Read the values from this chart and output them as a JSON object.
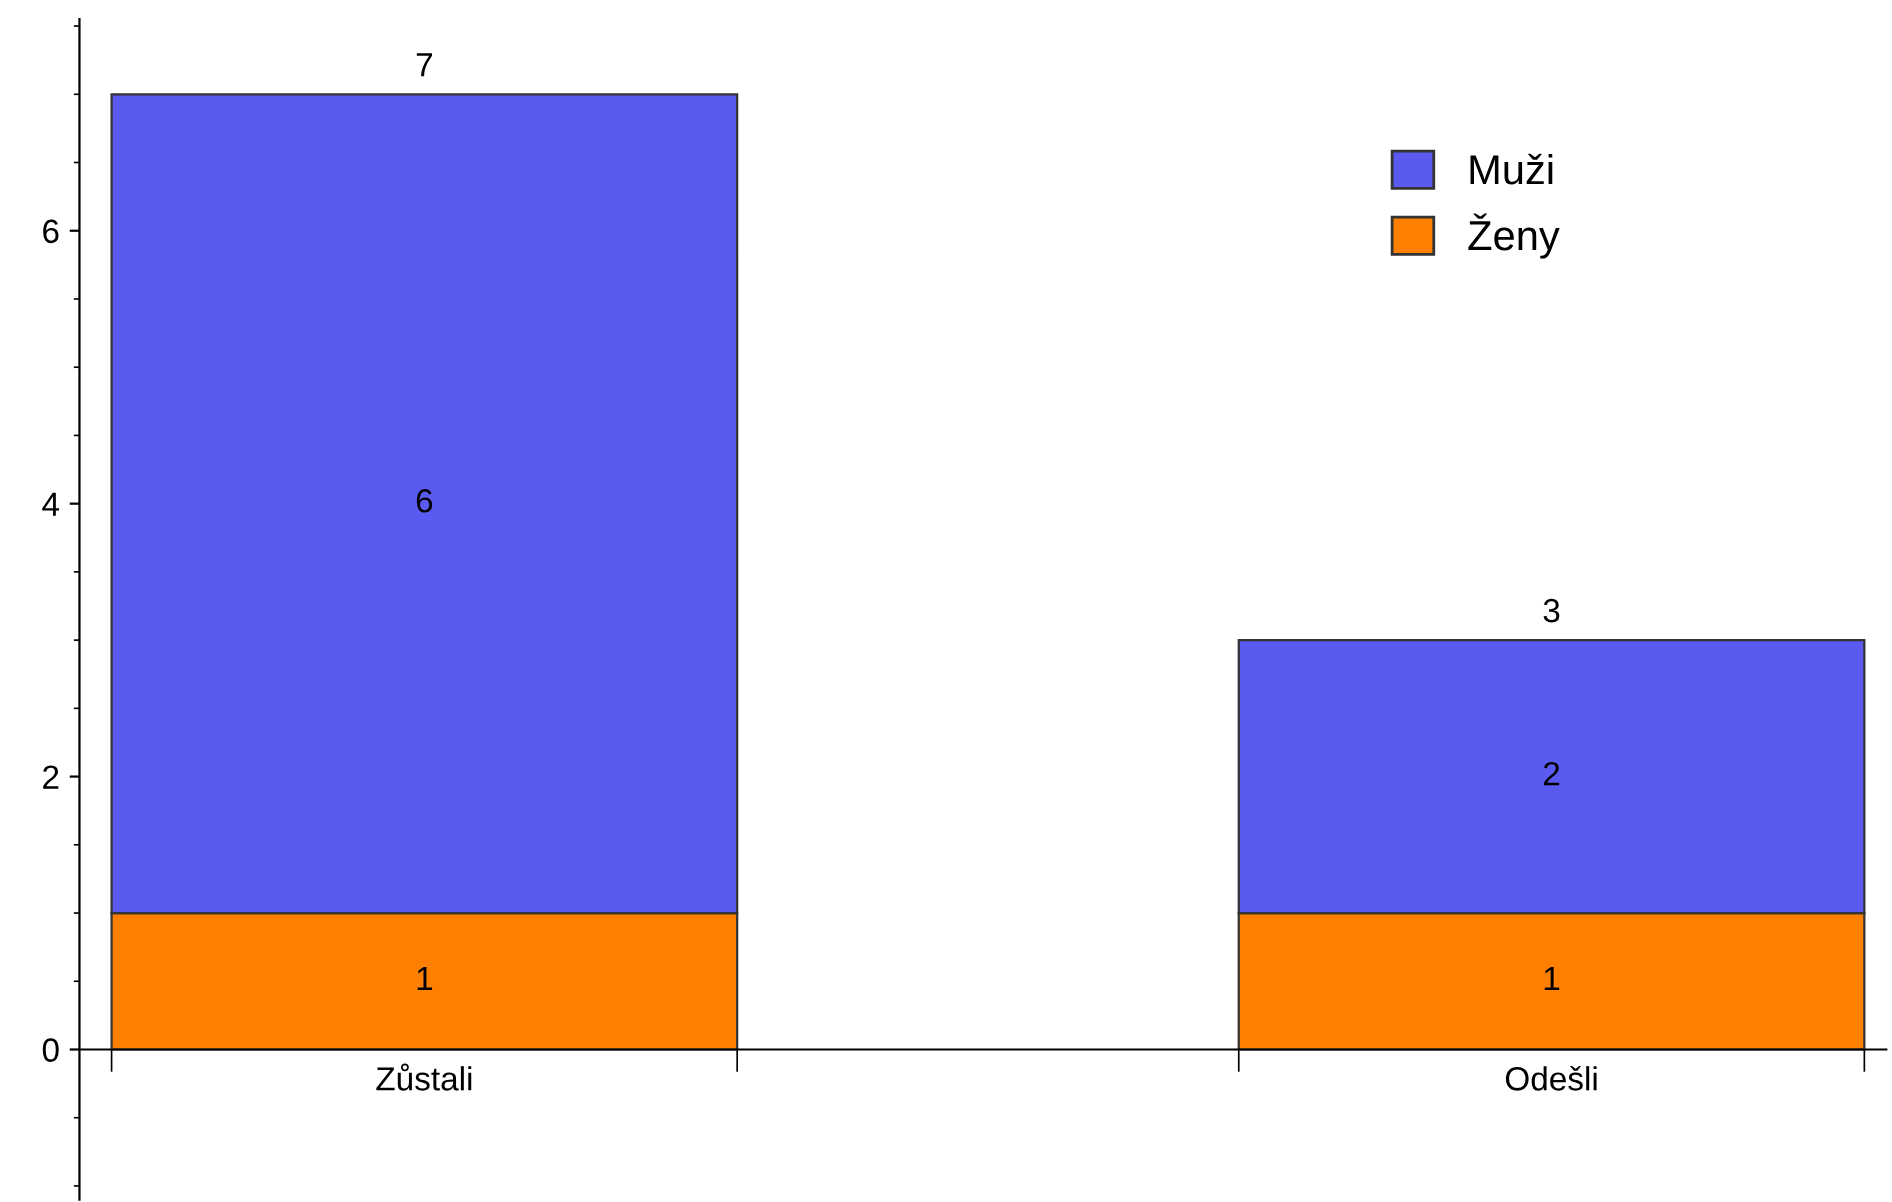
{
  "chart_data": {
    "type": "bar",
    "stacked": true,
    "categories": [
      "Zůstali",
      "Odešli"
    ],
    "series": [
      {
        "name": "Ženy",
        "color": "#ff8000",
        "values": [
          1,
          1
        ]
      },
      {
        "name": "Muži",
        "color": "#5a5af0",
        "values": [
          6,
          2
        ]
      }
    ],
    "ylim": [
      -1.1,
      7.55
    ],
    "yticks": [
      0,
      2,
      4,
      6
    ],
    "data_labels": true,
    "totals": [
      "7",
      "3"
    ],
    "legend": "top right",
    "grid": false
  }
}
